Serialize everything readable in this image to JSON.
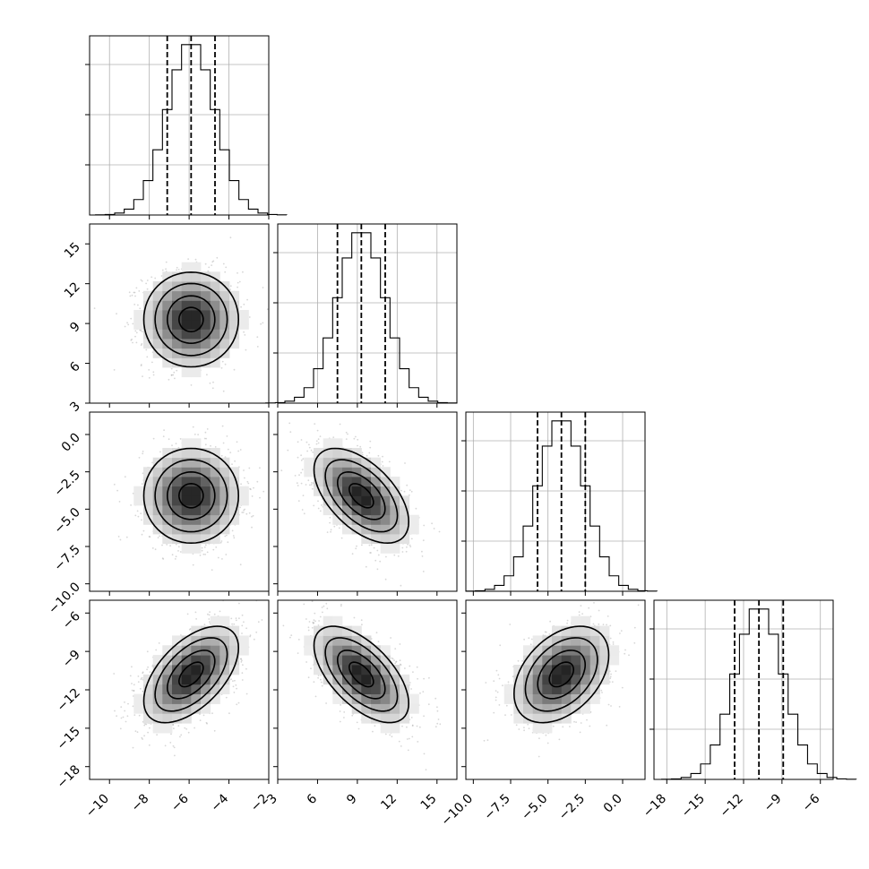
{
  "chart_data": {
    "type": "corner",
    "parameters": 4,
    "title": "",
    "colors": {
      "line": "#000000",
      "grid": "#b0b0b0",
      "scatter": "#8c8c8c",
      "density_dark": "#000000",
      "density_light": "#ffffff"
    },
    "grid": true,
    "params": [
      {
        "label": "",
        "mean": -5.9,
        "sd": 1.2,
        "range": [
          -11,
          -2
        ],
        "ticks": [
          -10,
          -8,
          -6,
          -4,
          -2
        ],
        "tick_labels": [
          "−10",
          "−8",
          "−6",
          "−4",
          "−2"
        ],
        "quantiles": [
          -7.1,
          -5.9,
          -4.7
        ]
      },
      {
        "label": "",
        "mean": 9.3,
        "sd": 1.8,
        "range": [
          3,
          16.5
        ],
        "ticks": [
          3,
          6,
          9,
          12,
          15
        ],
        "tick_labels": [
          "3",
          "6",
          "9",
          "12",
          "15"
        ],
        "quantiles": [
          7.5,
          9.3,
          11.1
        ]
      },
      {
        "label": "",
        "mean": -4.1,
        "sd": 1.6,
        "range": [
          -10.5,
          1.5
        ],
        "ticks": [
          -10,
          -7.5,
          -5,
          -2.5,
          0
        ],
        "tick_labels": [
          "−10.0",
          "−7.5",
          "−5.0",
          "−2.5",
          "0.0"
        ],
        "quantiles": [
          -5.7,
          -4.1,
          -2.5
        ]
      },
      {
        "label": "",
        "mean": -10.8,
        "sd": 1.9,
        "range": [
          -19,
          -5
        ],
        "ticks": [
          -18,
          -15,
          -12,
          -9,
          -6
        ],
        "tick_labels": [
          "−18",
          "−15",
          "−12",
          "−9",
          "−6"
        ],
        "quantiles": [
          -12.7,
          -10.8,
          -8.9
        ]
      }
    ],
    "correlations": [
      {
        "pair": [
          0,
          1
        ],
        "rho": 0.0
      },
      {
        "pair": [
          0,
          2
        ],
        "rho": 0.0
      },
      {
        "pair": [
          1,
          2
        ],
        "rho": -0.55
      },
      {
        "pair": [
          0,
          3
        ],
        "rho": 0.55
      },
      {
        "pair": [
          1,
          3
        ],
        "rho": -0.6
      },
      {
        "pair": [
          2,
          3
        ],
        "rho": 0.4
      }
    ],
    "hist_bins": 20,
    "contour_levels": [
      0.12,
      0.39,
      0.68,
      0.86
    ]
  }
}
